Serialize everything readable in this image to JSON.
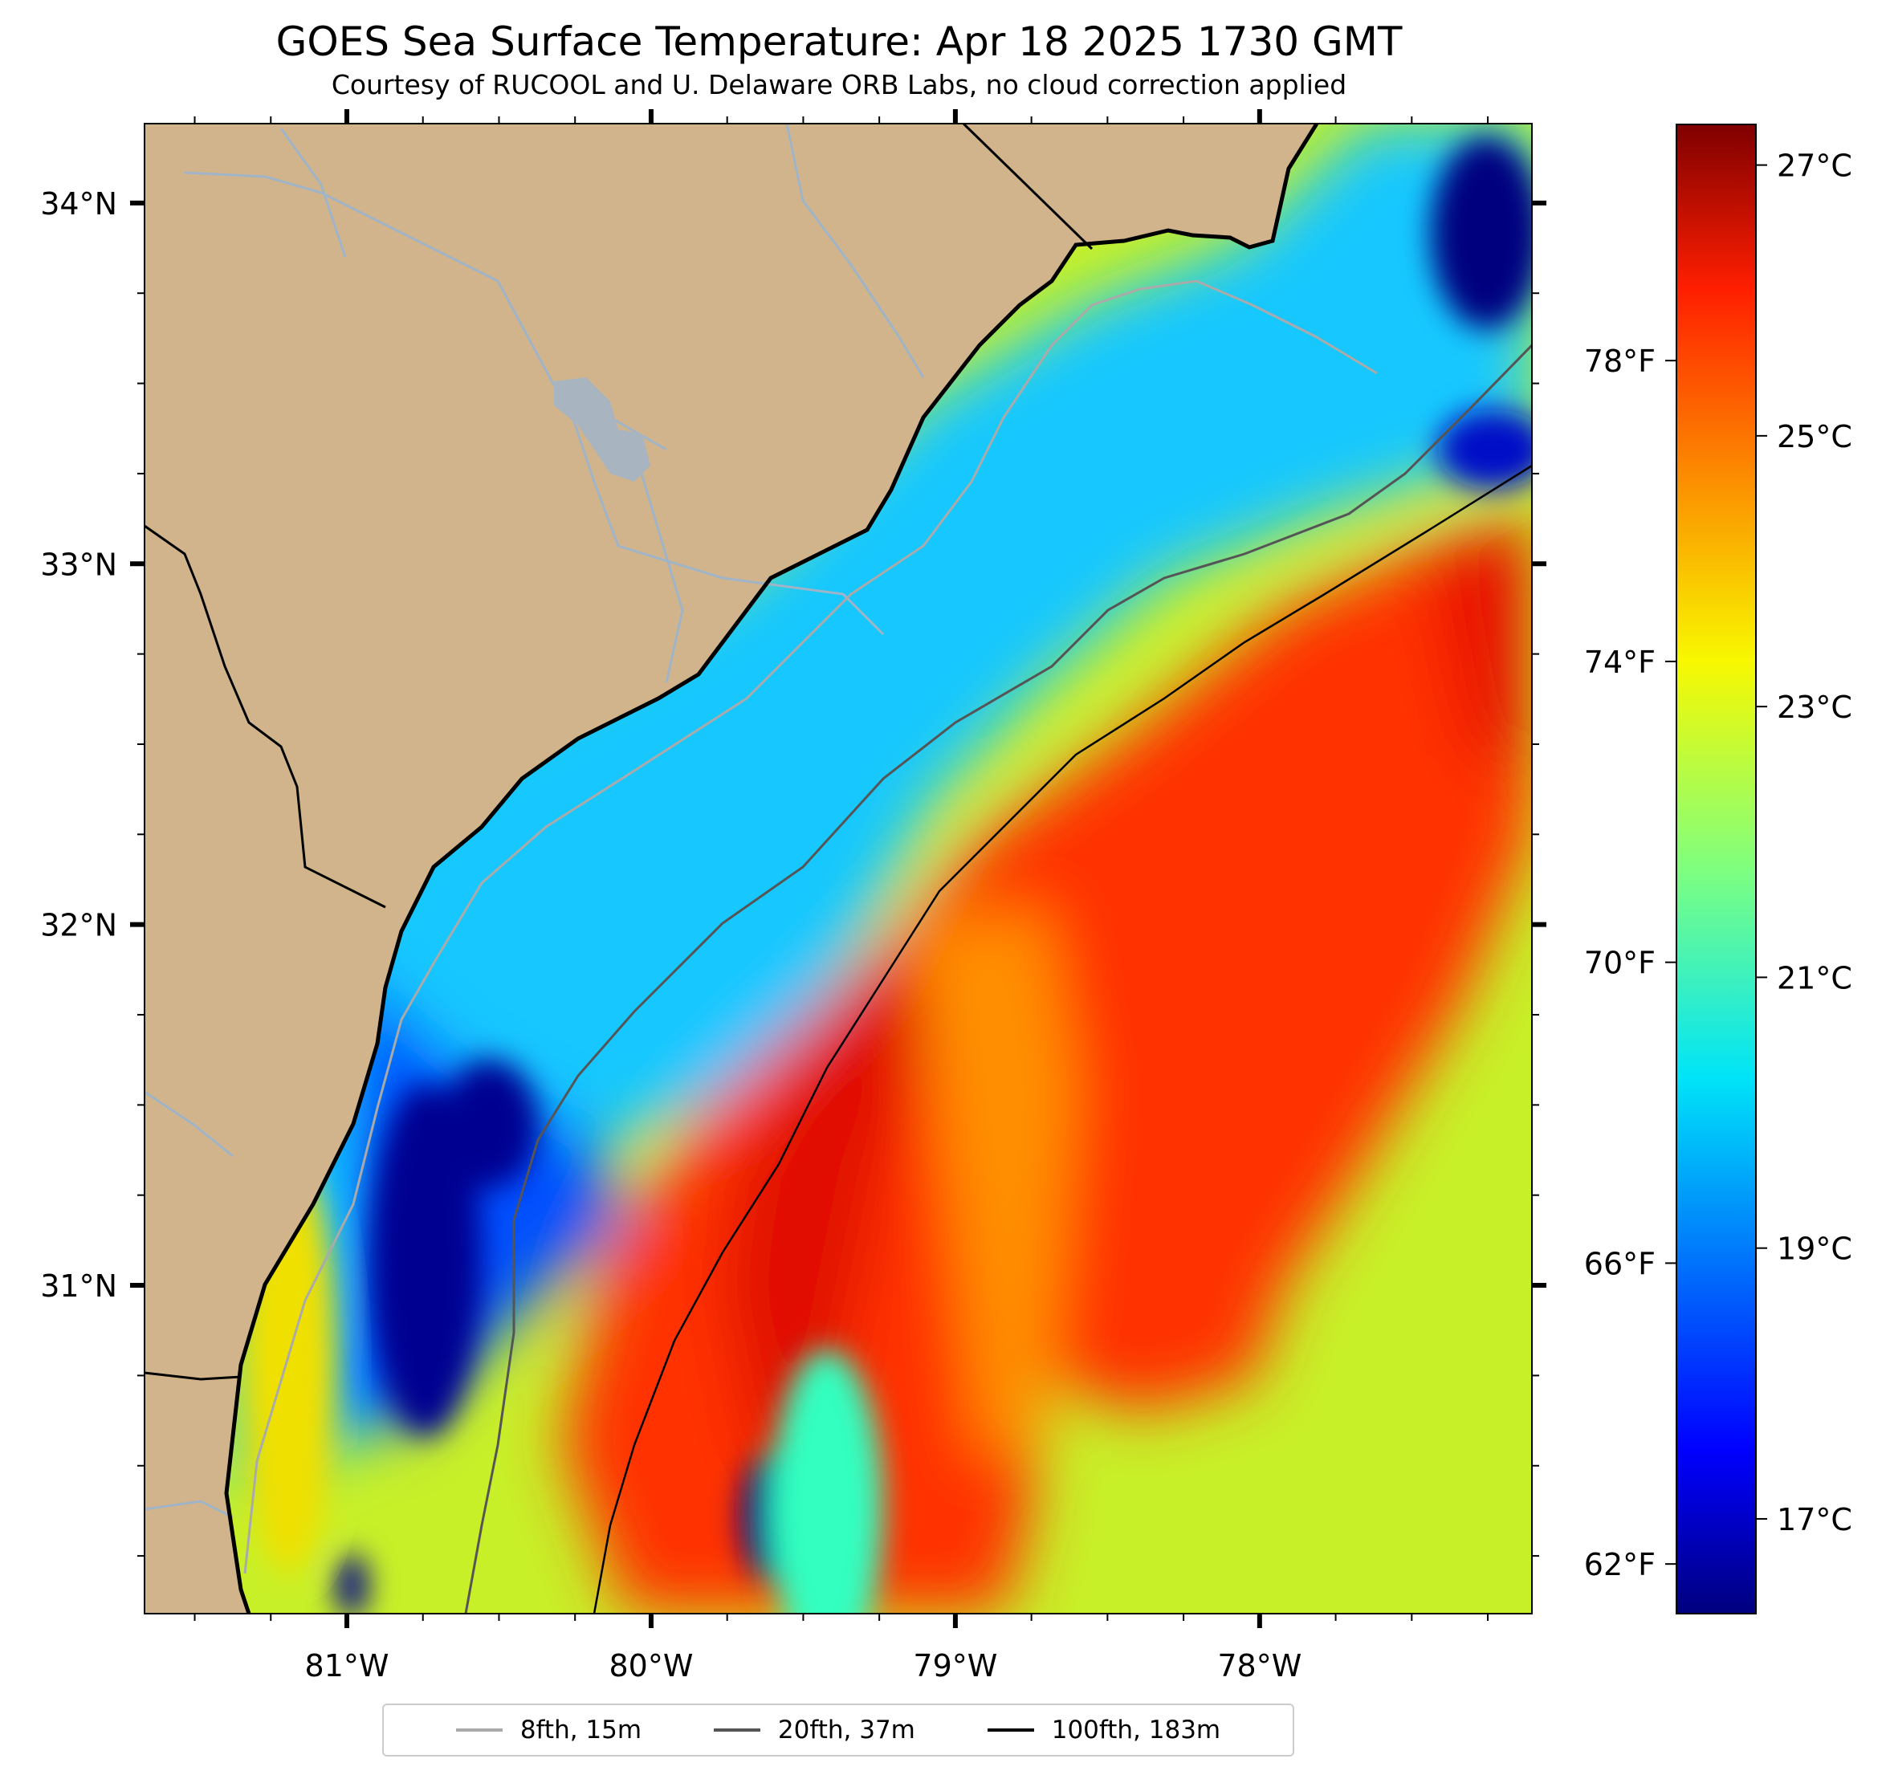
{
  "title": "GOES Sea Surface Temperature: Apr 18 2025 1730 GMT",
  "subtitle": "Courtesy of RUCOOL and U. Delaware ORB Labs, no cloud correction applied",
  "map": {
    "extent": {
      "lon_min": -81.665,
      "lon_max": -77.105,
      "lat_min": 30.09,
      "lat_max": 34.22
    },
    "lat_ticks": [
      {
        "value": 34,
        "label": "34°N"
      },
      {
        "value": 33,
        "label": "33°N"
      },
      {
        "value": 32,
        "label": "32°N"
      },
      {
        "value": 31,
        "label": "31°N"
      }
    ],
    "lon_ticks": [
      {
        "value": -81,
        "label": "81°W"
      },
      {
        "value": -80,
        "label": "80°W"
      },
      {
        "value": -79,
        "label": "79°W"
      },
      {
        "value": -78,
        "label": "78°W"
      }
    ],
    "colors": {
      "land": "#d2b48c",
      "river": "#a0b4c8",
      "state_border": "#000000",
      "coast": "#000000"
    }
  },
  "colorbar": {
    "colormap": "jet",
    "range_c": [
      16.3,
      27.3
    ],
    "celsius_ticks": [
      {
        "value": 27,
        "label": "27°C"
      },
      {
        "value": 25,
        "label": "25°C"
      },
      {
        "value": 23,
        "label": "23°C"
      },
      {
        "value": 21,
        "label": "21°C"
      },
      {
        "value": 19,
        "label": "19°C"
      },
      {
        "value": 17,
        "label": "17°C"
      }
    ],
    "fahrenheit_ticks": [
      {
        "value": 78,
        "label": "78°F"
      },
      {
        "value": 74,
        "label": "74°F"
      },
      {
        "value": 70,
        "label": "70°F"
      },
      {
        "value": 66,
        "label": "66°F"
      },
      {
        "value": 62,
        "label": "62°F"
      }
    ]
  },
  "legend": {
    "items": [
      {
        "label": "8fth, 15m",
        "color": "#aaaaaa"
      },
      {
        "label": "20fth, 37m",
        "color": "#555555"
      },
      {
        "label": "100fth, 183m",
        "color": "#000000"
      }
    ]
  }
}
